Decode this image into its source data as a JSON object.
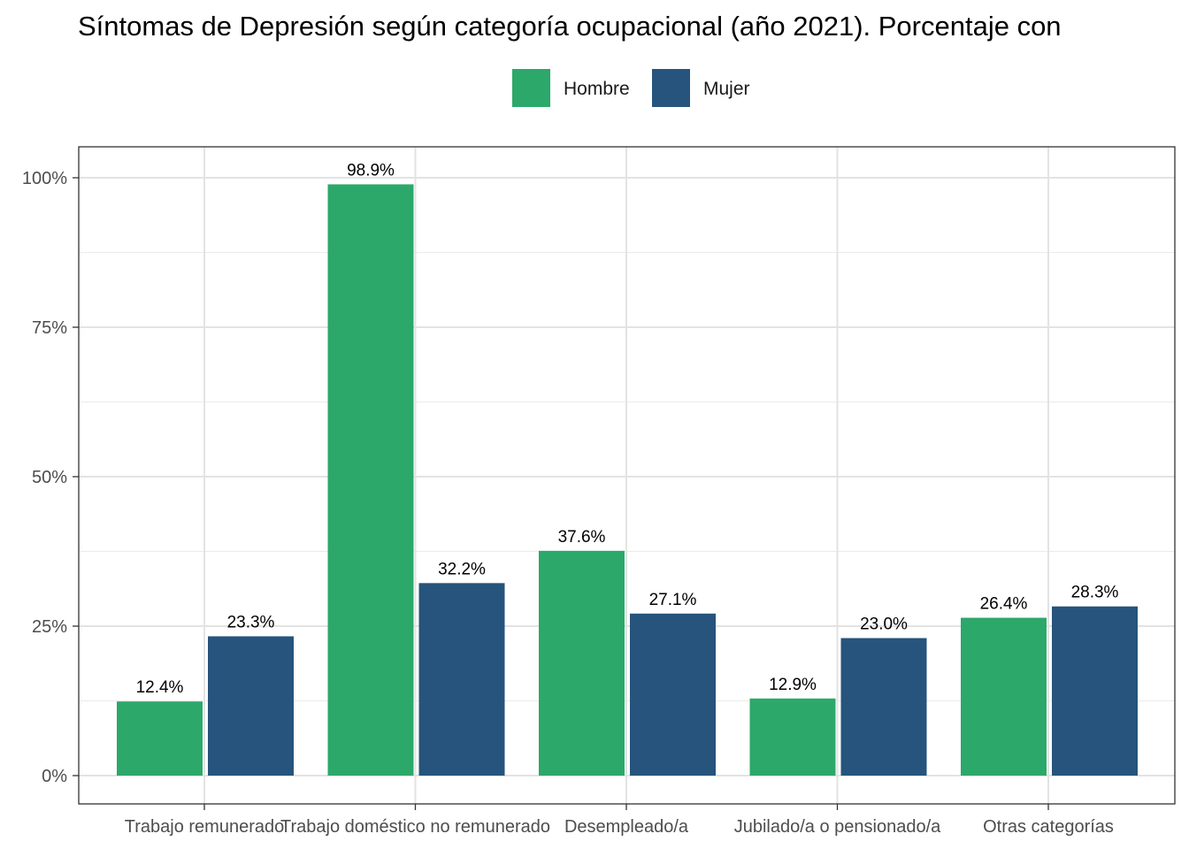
{
  "chart_data": {
    "type": "bar",
    "title": "Síntomas de Depresión según categoría ocupacional (año 2021). Porcentaje con",
    "xlabel": "",
    "ylabel": "",
    "categories": [
      "Trabajo remunerado",
      "Trabajo doméstico no remunerado",
      "Desempleado/a",
      "Jubilado/a o pensionado/a",
      "Otras categorías"
    ],
    "series": [
      {
        "name": "Hombre",
        "color": "#2ca86a",
        "values": [
          12.4,
          98.9,
          37.6,
          12.9,
          26.4
        ],
        "labels": [
          "12.4%",
          "98.9%",
          "37.6%",
          "12.9%",
          "26.4%"
        ]
      },
      {
        "name": "Mujer",
        "color": "#26547c",
        "values": [
          23.3,
          32.2,
          27.1,
          23.0,
          28.3
        ],
        "labels": [
          "23.3%",
          "32.2%",
          "27.1%",
          "23.0%",
          "28.3%"
        ]
      }
    ],
    "ylim": [
      0,
      100
    ],
    "yticks": [
      0,
      25,
      50,
      75,
      100
    ],
    "ytick_labels": [
      "0%",
      "25%",
      "50%",
      "75%",
      "100%"
    ],
    "grid": true,
    "legend_position": "top"
  }
}
